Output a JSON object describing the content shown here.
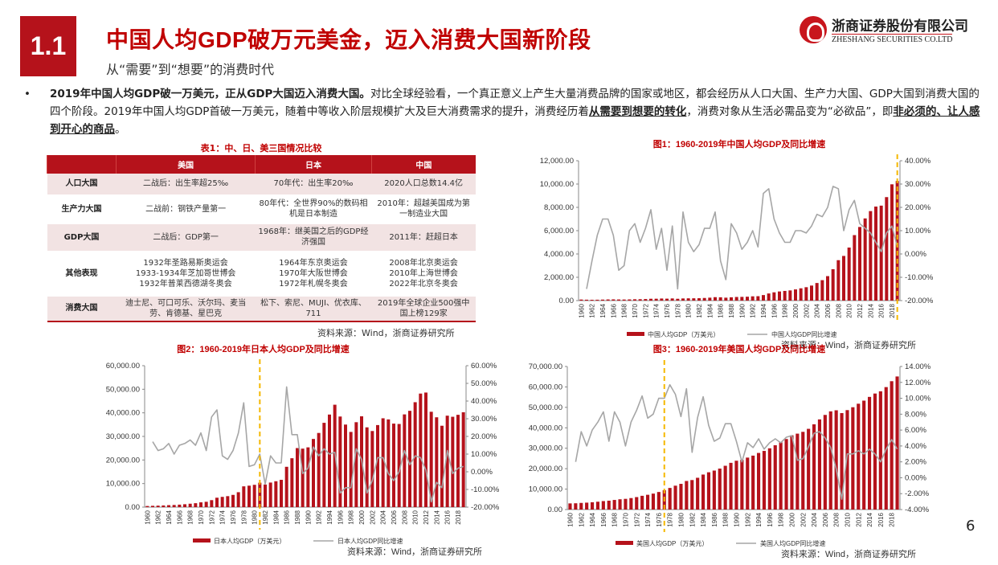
{
  "header": {
    "section_number": "1.1",
    "title": "中国人均GDP破万元美金，迈入消费大国新阶段",
    "subtitle": "从“需要”到“想要”的消费时代"
  },
  "logo": {
    "name_cn": "浙商证券股份有限公司",
    "name_en": "ZHESHANG SECURITIES CO.LTD"
  },
  "bullet": {
    "lead": "2019年中国人均GDP破一万美元，正从GDP大国迈入消费大国。",
    "body1": "对比全球经验看，一个真正意义上产生大量消费品牌的国家或地区，都会经历从人口大国、生产力大国、GDP大国到消费大国的四个阶段。2019年中国人均GDP首破一万美元，随着中等收入阶层规模扩大及巨大消费需求的提升，消费经历着",
    "em1": "从需要到想要的转化",
    "body2": "，消费对象从生活必需品变为“必欲品”，即",
    "em2": "非必须的、让人感到开心的商品",
    "end": "。"
  },
  "table": {
    "title": "表1：中、日、美三国情况比较",
    "headers": [
      "",
      "美国",
      "日本",
      "中国"
    ],
    "rows": [
      [
        "人口大国",
        "二战后：出生率超25‰",
        "70年代：出生率20‰",
        "2020人口总数14.4亿"
      ],
      [
        "生产力大国",
        "二战前：钢铁产量第一",
        "80年代：全世界90%的数码相机是日本制造",
        "2010年：超越美国成为第一制造业大国"
      ],
      [
        "GDP大国",
        "二战后：GDP第一",
        "1968年：继美国之后的GDP经济强国",
        "2011年：赶超日本"
      ],
      [
        "其他表现",
        "1932年圣路易斯奥运会\n1933-1934年芝加哥世博会\n1932年普莱西德湖冬奥会",
        "1964年东京奥运会\n1970年大阪世博会\n1972年札幌冬奥会",
        "2008年北京奥运会\n2010年上海世博会\n2022年北京冬奥会"
      ],
      [
        "消费大国",
        "迪士尼、可口可乐、沃尔玛、麦当劳、肯德基、星巴克",
        "松下、索尼、MUJI、优衣库、711",
        "2019年全球企业500强中国上榜129家"
      ]
    ],
    "source": "资料来源：Wind，浙商证券研究所"
  },
  "page_number": "6",
  "colors": {
    "accent": "#c00000",
    "bar": "#b5121b",
    "line": "#a6a6a6",
    "marker": "#f5b800"
  },
  "chart_data": [
    {
      "type": "bar+line",
      "title": "图1：1960-2019年中国人均GDP及同比增速",
      "source": "资料来源：Wind，浙商证券研究所",
      "x_start": 1960,
      "x_end": 2019,
      "ylim": [
        0,
        12000
      ],
      "y_ticks": [
        "0.00",
        "2,000.00",
        "4,000.00",
        "6,000.00",
        "8,000.00",
        "10,000.00",
        "12,000.00"
      ],
      "y2lim": [
        -20,
        40
      ],
      "y2_ticks": [
        "-20.00%",
        "-10.00%",
        "0.00%",
        "10.00%",
        "20.00%",
        "30.00%",
        "40.00%"
      ],
      "marker_year": 2019,
      "series": [
        {
          "name": "中国人均GDP（万美元）",
          "type": "bar",
          "values": [
            90,
            76,
            70,
            74,
            85,
            98,
            104,
            96,
            91,
            100,
            113,
            119,
            132,
            157,
            160,
            178,
            165,
            185,
            156,
            183,
            195,
            197,
            203,
            225,
            251,
            294,
            282,
            251,
            283,
            310,
            318,
            333,
            366,
            377,
            473,
            610,
            709,
            782,
            829,
            873,
            959,
            1053,
            1149,
            1289,
            1509,
            1753,
            2099,
            2694,
            3468,
            3832,
            4550,
            5618,
            6317,
            7051,
            7679,
            8067,
            8148,
            8879,
            9977,
            10262
          ]
        },
        {
          "name": "中国人均GDP同比增速",
          "type": "line",
          "unit": "%",
          "values": [
            null,
            -15,
            -3,
            8,
            15,
            15,
            8,
            -7,
            -5,
            10,
            13,
            5,
            11,
            19,
            2,
            11,
            -7,
            12,
            -15,
            18,
            5,
            1,
            4,
            11,
            11,
            18,
            -3,
            -11,
            13,
            9,
            2,
            5,
            10,
            3,
            26,
            28,
            15,
            9,
            5,
            5,
            10,
            10,
            9,
            12,
            17,
            16,
            20,
            29,
            28,
            10,
            19,
            23,
            13,
            11,
            9,
            5,
            1,
            9,
            12,
            3
          ]
        }
      ]
    },
    {
      "type": "bar+line",
      "title": "图2：1960-2019年日本人均GDP及同比增速",
      "source": "资料来源：Wind，浙商证券研究所",
      "x_start": 1960,
      "x_end": 2019,
      "ylim": [
        0,
        60000
      ],
      "y_ticks": [
        "0.00",
        "10,000.00",
        "20,000.00",
        "30,000.00",
        "40,000.00",
        "50,000.00",
        "60,000.00"
      ],
      "y2lim": [
        -20,
        60
      ],
      "y2_ticks": [
        "-20.00%",
        "-10.00%",
        "0.00%",
        "10.00%",
        "20.00%",
        "30.00%",
        "40.00%",
        "50.00%",
        "60.00%"
      ],
      "marker_year": 1981,
      "series": [
        {
          "name": "日本人均GDP（万美元）",
          "type": "bar",
          "values": [
            479,
            563,
            633,
            718,
            836,
            919,
            1058,
            1228,
            1450,
            1669,
            2037,
            2272,
            2967,
            3997,
            4354,
            4659,
            5197,
            6335,
            8821,
            9105,
            9465,
            10361,
            9578,
            10425,
            10984,
            11585,
            17112,
            20745,
            25051,
            24813,
            25359,
            28925,
            31465,
            35766,
            39269,
            43440,
            38437,
            35022,
            31903,
            36027,
            38532,
            33846,
            32289,
            34808,
            37689,
            37218,
            35434,
            35275,
            39339,
            40855,
            44508,
            48168,
            48603,
            40454,
            38109,
            34524,
            38794,
            38332,
            39159,
            40247
          ]
        },
        {
          "name": "日本人均GDP同比增速",
          "type": "line",
          "unit": "%",
          "values": [
            null,
            17,
            12,
            13,
            16,
            10,
            15,
            16,
            18,
            15,
            22,
            12,
            31,
            35,
            9,
            7,
            12,
            22,
            39,
            3,
            4,
            10,
            -7,
            9,
            5,
            5,
            48,
            21,
            21,
            -1,
            2,
            14,
            9,
            13,
            10,
            11,
            -12,
            -9,
            -9,
            13,
            7,
            -12,
            -5,
            8,
            8,
            -1,
            -5,
            0,
            12,
            4,
            9,
            8,
            1,
            -17,
            -6,
            -9,
            12,
            -1,
            2,
            3
          ]
        }
      ]
    },
    {
      "type": "bar+line",
      "title": "图3：1960-2019年美国人均GDP及同比增速",
      "source": "资料来源：Wind，浙商证券研究所",
      "x_start": 1960,
      "x_end": 2019,
      "ylim": [
        0,
        70000
      ],
      "y_ticks": [
        "0.00",
        "10,000.00",
        "20,000.00",
        "30,000.00",
        "40,000.00",
        "50,000.00",
        "60,000.00",
        "70,000.00"
      ],
      "y2lim": [
        -4,
        14
      ],
      "y2_ticks": [
        "-4.00%",
        "-2.00%",
        "0.00%",
        "2.00%",
        "4.00%",
        "6.00%",
        "8.00%",
        "10.00%",
        "12.00%",
        "14.00%"
      ],
      "marker_year": 1977,
      "series": [
        {
          "name": "美国人均GDP（万美元）",
          "type": "bar",
          "values": [
            3007,
            3067,
            3244,
            3375,
            3574,
            3828,
            4146,
            4336,
            4696,
            5032,
            5234,
            5609,
            6094,
            6726,
            7226,
            7801,
            8592,
            9453,
            10565,
            11674,
            12575,
            13976,
            14434,
            15544,
            17121,
            18237,
            19071,
            20039,
            21417,
            22857,
            23889,
            24342,
            25419,
            26387,
            27695,
            28691,
            29968,
            31459,
            32854,
            34516,
            36330,
            37134,
            38023,
            39497,
            41712,
            44115,
            46299,
            48050,
            48570,
            47195,
            48651,
            50066,
            51784,
            53291,
            55124,
            56763,
            57867,
            59915,
            62805,
            65118
          ]
        },
        {
          "name": "美国人均GDP同比增速",
          "type": "line",
          "unit": "%",
          "values": [
            null,
            2,
            5.8,
            4,
            6,
            7,
            8.3,
            4.6,
            8.3,
            7,
            4,
            7,
            8.5,
            10.3,
            7.5,
            8,
            10,
            10,
            11.7,
            10.5,
            7.7,
            11.2,
            3.2,
            7.6,
            10.2,
            6.6,
            4.6,
            5,
            6.8,
            6.8,
            4.6,
            2,
            4.4,
            3.8,
            4.9,
            3.6,
            4.4,
            4.9,
            4.4,
            5.1,
            5.3,
            2.2,
            2.4,
            3.9,
            5.6,
            5.8,
            5,
            3.8,
            1.1,
            -2.7,
            3,
            3,
            3.4,
            3,
            3.6,
            3,
            2,
            3.6,
            4.8,
            3.6
          ]
        }
      ]
    }
  ]
}
